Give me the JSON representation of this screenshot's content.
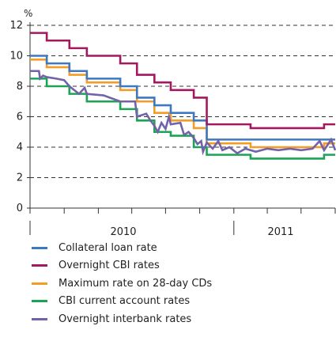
{
  "chart_data": {
    "type": "line",
    "unit_label": "%",
    "ylim": [
      0,
      12
    ],
    "yticks": [
      0,
      2,
      4,
      6,
      8,
      10,
      12
    ],
    "grid": "dashed horizontal",
    "x_year_labels": [
      "2010",
      "2011"
    ],
    "xlim": [
      "2009-07-01",
      "2011-10-01"
    ],
    "series": [
      {
        "name": "Collateral loan rate",
        "color": "#3d79c2",
        "steps": [
          [
            "2009-07-01",
            10.0
          ],
          [
            "2009-08-15",
            9.5
          ],
          [
            "2009-10-15",
            9.0
          ],
          [
            "2009-12-01",
            8.5
          ],
          [
            "2010-03-01",
            8.0
          ],
          [
            "2010-04-15",
            7.25
          ],
          [
            "2010-06-01",
            6.75
          ],
          [
            "2010-07-15",
            6.25
          ],
          [
            "2010-09-15",
            5.75
          ],
          [
            "2010-10-20",
            4.5
          ],
          [
            "2011-09-01",
            4.5
          ]
        ]
      },
      {
        "name": "Overnight CBI rates",
        "color": "#a3185f",
        "steps": [
          [
            "2009-07-01",
            11.5
          ],
          [
            "2009-08-15",
            11.0
          ],
          [
            "2009-10-15",
            10.5
          ],
          [
            "2009-12-01",
            10.0
          ],
          [
            "2010-03-01",
            9.5
          ],
          [
            "2010-04-15",
            8.75
          ],
          [
            "2010-06-01",
            8.25
          ],
          [
            "2010-07-15",
            7.75
          ],
          [
            "2010-09-15",
            7.25
          ],
          [
            "2010-10-20",
            5.5
          ],
          [
            "2011-02-15",
            5.25
          ],
          [
            "2011-09-01",
            5.5
          ]
        ]
      },
      {
        "name": "Maximum rate on 28-day CDs",
        "color": "#f39c26",
        "steps": [
          [
            "2009-07-01",
            9.75
          ],
          [
            "2009-08-15",
            9.25
          ],
          [
            "2009-10-15",
            8.75
          ],
          [
            "2009-12-01",
            8.25
          ],
          [
            "2010-03-01",
            7.75
          ],
          [
            "2010-04-15",
            7.0
          ],
          [
            "2010-06-01",
            6.25
          ],
          [
            "2010-07-15",
            5.75
          ],
          [
            "2010-09-15",
            5.25
          ],
          [
            "2010-10-20",
            4.25
          ],
          [
            "2011-02-15",
            4.0
          ],
          [
            "2011-09-01",
            4.25
          ]
        ]
      },
      {
        "name": "CBI current account rates",
        "color": "#1aa453",
        "steps": [
          [
            "2009-07-01",
            8.5
          ],
          [
            "2009-08-15",
            8.0
          ],
          [
            "2009-10-15",
            7.5
          ],
          [
            "2009-12-01",
            7.0
          ],
          [
            "2010-03-01",
            6.5
          ],
          [
            "2010-04-15",
            5.75
          ],
          [
            "2010-06-01",
            5.0
          ],
          [
            "2010-07-15",
            4.75
          ],
          [
            "2010-09-15",
            4.0
          ],
          [
            "2010-10-20",
            3.5
          ],
          [
            "2011-02-15",
            3.25
          ],
          [
            "2011-09-01",
            3.5
          ]
        ]
      },
      {
        "name": "Overnight interbank rates",
        "color": "#7362a9",
        "points": [
          [
            "2009-07-01",
            9.0
          ],
          [
            "2009-07-25",
            9.0
          ],
          [
            "2009-07-28",
            8.5
          ],
          [
            "2009-08-05",
            8.7
          ],
          [
            "2009-08-15",
            8.6
          ],
          [
            "2009-09-10",
            8.5
          ],
          [
            "2009-10-01",
            8.4
          ],
          [
            "2009-10-15",
            8.0
          ],
          [
            "2009-11-10",
            7.5
          ],
          [
            "2009-11-25",
            7.9
          ],
          [
            "2009-12-01",
            7.5
          ],
          [
            "2010-01-15",
            7.4
          ],
          [
            "2010-03-01",
            7.0
          ],
          [
            "2010-04-10",
            7.0
          ],
          [
            "2010-04-15",
            6.0
          ],
          [
            "2010-05-10",
            6.2
          ],
          [
            "2010-05-20",
            5.8
          ],
          [
            "2010-06-01",
            5.4
          ],
          [
            "2010-06-10",
            5.0
          ],
          [
            "2010-06-20",
            5.6
          ],
          [
            "2010-07-01",
            5.2
          ],
          [
            "2010-07-10",
            6.0
          ],
          [
            "2010-07-15",
            5.5
          ],
          [
            "2010-08-10",
            5.6
          ],
          [
            "2010-08-20",
            4.8
          ],
          [
            "2010-09-01",
            5.0
          ],
          [
            "2010-09-15",
            4.6
          ],
          [
            "2010-09-25",
            4.2
          ],
          [
            "2010-10-05",
            4.4
          ],
          [
            "2010-10-10",
            3.7
          ],
          [
            "2010-10-20",
            4.3
          ],
          [
            "2010-11-05",
            3.9
          ],
          [
            "2010-11-20",
            4.4
          ],
          [
            "2010-12-01",
            3.8
          ],
          [
            "2010-12-20",
            4.0
          ],
          [
            "2011-01-10",
            3.6
          ],
          [
            "2011-02-01",
            3.9
          ],
          [
            "2011-03-01",
            3.7
          ],
          [
            "2011-04-01",
            3.9
          ],
          [
            "2011-05-01",
            3.8
          ],
          [
            "2011-06-01",
            3.9
          ],
          [
            "2011-07-01",
            3.8
          ],
          [
            "2011-08-01",
            3.9
          ],
          [
            "2011-08-20",
            4.4
          ],
          [
            "2011-09-01",
            3.8
          ],
          [
            "2011-09-20",
            4.5
          ],
          [
            "2011-10-01",
            3.8
          ]
        ]
      }
    ]
  }
}
